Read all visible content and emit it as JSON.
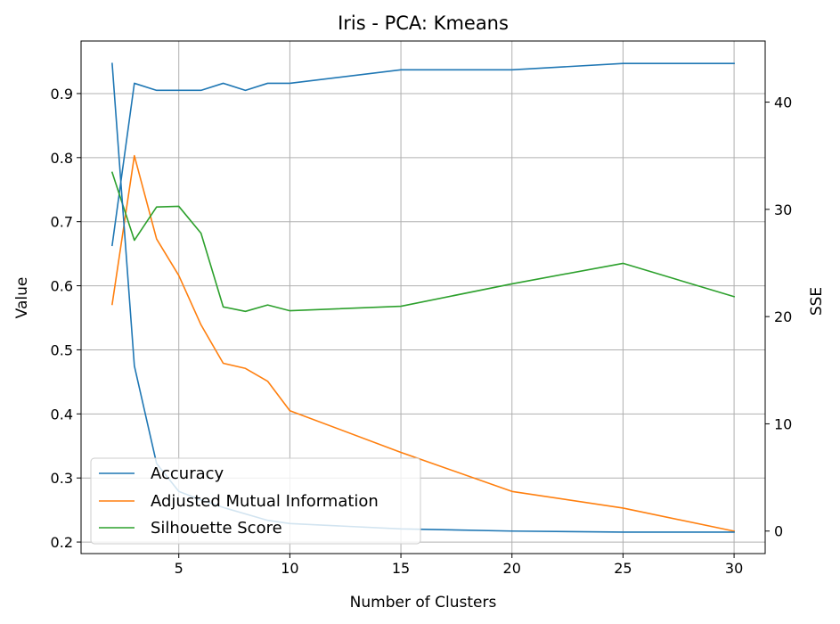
{
  "chart_data": {
    "type": "line",
    "title": "Iris - PCA: Kmeans",
    "xlabel": "Number of Clusters",
    "ylabel": "Value",
    "ylabel_right": "SSE",
    "grid": true,
    "legend_position": "lower-left",
    "xlim": [
      0.6,
      31.4
    ],
    "ylim": [
      0.182,
      0.982
    ],
    "ylim_right": [
      -2.1,
      45.7
    ],
    "x_ticks": [
      5,
      10,
      15,
      20,
      25,
      30
    ],
    "y_ticks": [
      0.2,
      0.3,
      0.4,
      0.5,
      0.6,
      0.7,
      0.8,
      0.9
    ],
    "y_ticks_right": [
      0,
      10,
      20,
      30,
      40
    ],
    "x": [
      2,
      3,
      4,
      5,
      6,
      7,
      8,
      9,
      10,
      15,
      20,
      25,
      30
    ],
    "series": [
      {
        "name": "Accuracy",
        "color": "#1f77b4",
        "axis": "left",
        "values": [
          0.663,
          0.916,
          0.905,
          0.905,
          0.905,
          0.916,
          0.905,
          0.916,
          0.916,
          0.937,
          0.937,
          0.947,
          0.947
        ]
      },
      {
        "name": "Adjusted Mutual Information",
        "color": "#ff7f0e",
        "axis": "left",
        "values": [
          0.571,
          0.803,
          0.673,
          0.616,
          0.539,
          0.479,
          0.471,
          0.451,
          0.405,
          0.34,
          0.279,
          0.253,
          0.217
        ]
      },
      {
        "name": "Silhouette Score",
        "color": "#2ca02c",
        "axis": "left",
        "values": [
          0.777,
          0.671,
          0.723,
          0.724,
          0.682,
          0.567,
          0.56,
          0.57,
          0.561,
          0.568,
          0.603,
          0.635,
          0.583
        ]
      },
      {
        "name": "SSE",
        "color": "#1f77b4",
        "axis": "right",
        "values": [
          43.6,
          15.4,
          6.3,
          3.7,
          2.9,
          2.2,
          1.6,
          1.0,
          0.7,
          0.2,
          0.0,
          -0.1,
          -0.1
        ]
      }
    ],
    "legend": [
      "Accuracy",
      "Adjusted Mutual Information",
      "Silhouette Score"
    ]
  }
}
